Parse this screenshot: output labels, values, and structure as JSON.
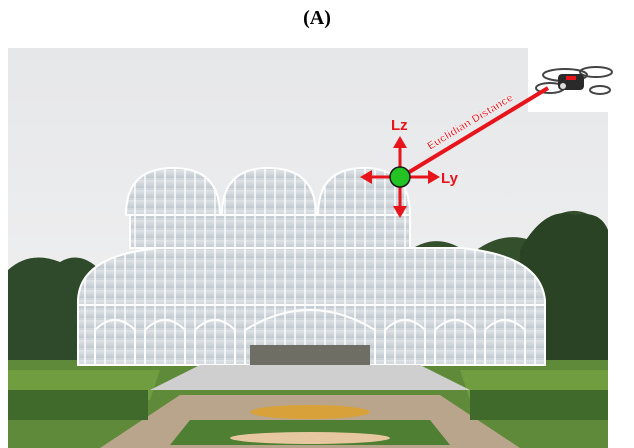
{
  "figure": {
    "label": "(A)",
    "annotations": {
      "z_axis": "Lz",
      "y_axis": "Ly",
      "distance": "Euclidian Distance"
    }
  }
}
